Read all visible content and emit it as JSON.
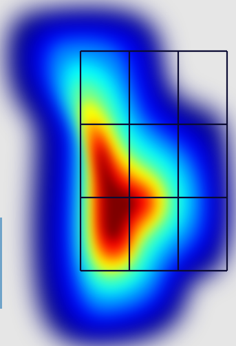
{
  "chart_data": {
    "type": "heatmap",
    "title": "",
    "xlabel": "",
    "ylabel": "",
    "colormap": "jet",
    "colormap_stops": [
      "#00007f",
      "#0000ff",
      "#0080ff",
      "#00ffff",
      "#80ff80",
      "#ffff00",
      "#ff8000",
      "#ff0000",
      "#7f0000"
    ],
    "background_color": "#e6e6e6",
    "grid_line_color": "#0b0b33",
    "grid": {
      "rows": 3,
      "cols": 3
    },
    "cell_values": [
      [
        0.45,
        0.3,
        0.1
      ],
      [
        0.95,
        0.85,
        0.4
      ],
      [
        0.9,
        0.7,
        0.3
      ]
    ]
  }
}
